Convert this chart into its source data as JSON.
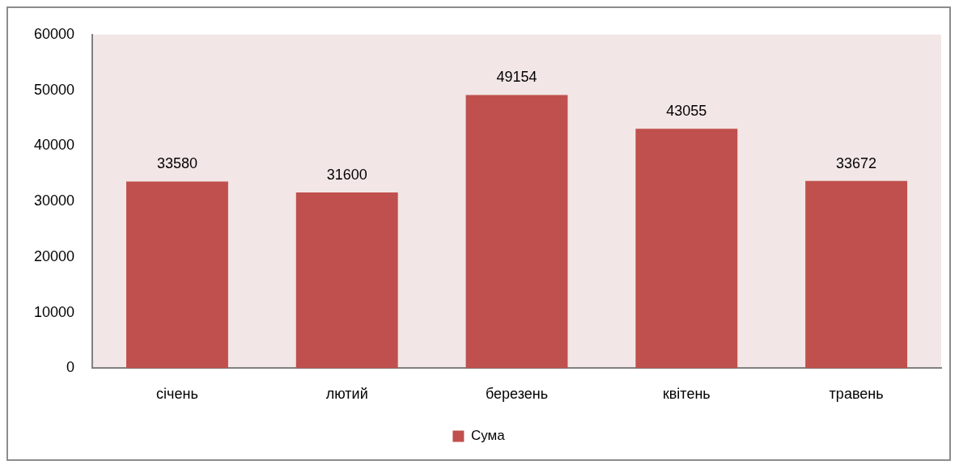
{
  "chart_data": {
    "type": "bar",
    "categories": [
      "січень",
      "лютий",
      "березень",
      "квітень",
      "травень"
    ],
    "series": [
      {
        "name": "Сума",
        "color": "#c0504d",
        "values": [
          33580,
          31600,
          49154,
          43055,
          33672
        ]
      }
    ],
    "ylim": [
      0,
      60000
    ],
    "yticks": [
      0,
      10000,
      20000,
      30000,
      40000,
      50000,
      60000
    ],
    "grid": false,
    "data_labels": true,
    "legend": "bottom"
  }
}
